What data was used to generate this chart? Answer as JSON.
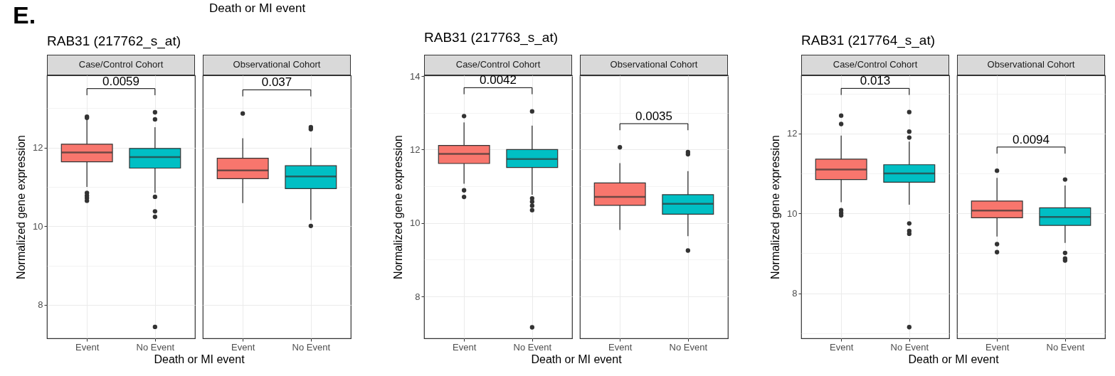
{
  "chart_data": [
    {
      "type": "box",
      "title": "RAB31 (217762_s_at)",
      "subtitle": "Case/Control Cohort",
      "xlabel": "Death or MI event",
      "ylabel": "Normalized gene expression",
      "categories": [
        "Event",
        "No Event"
      ],
      "colors": [
        "#f8766d",
        "#00bfc4"
      ],
      "boxes": [
        {
          "low": 11.0,
          "q1": 11.64,
          "median": 11.88,
          "q3": 12.09,
          "high": 12.72,
          "outliers": [
            12.79,
            12.76,
            10.85,
            10.78,
            10.72,
            10.65
          ]
        },
        {
          "low": 10.85,
          "q1": 11.48,
          "median": 11.76,
          "q3": 11.98,
          "high": 12.52,
          "outliers": [
            12.9,
            12.72,
            10.75,
            10.38,
            10.24,
            7.44
          ]
        }
      ],
      "ylim": [
        7.15,
        13.84
      ],
      "yticks": [
        {
          "value": 8,
          "label": "8"
        },
        {
          "value": 9,
          "label": null
        },
        {
          "value": 10,
          "label": "10"
        },
        {
          "value": 11,
          "label": null
        },
        {
          "value": 12,
          "label": "12"
        },
        {
          "value": 13,
          "label": null
        }
      ],
      "grid": true,
      "annotations": [
        "E.",
        "Death or MI event",
        "0.0059"
      ]
    },
    {
      "type": "box",
      "subtitle": "Observational Cohort",
      "categories": [
        "Event",
        "No Event"
      ],
      "colors": [
        "#f8766d",
        "#00bfc4"
      ],
      "boxes": [
        {
          "low": 10.59,
          "q1": 11.21,
          "median": 11.42,
          "q3": 11.73,
          "high": 12.24,
          "outliers": [
            12.87
          ]
        },
        {
          "low": 10.16,
          "q1": 10.96,
          "median": 11.27,
          "q3": 11.54,
          "high": 12.0,
          "outliers": [
            12.52,
            12.47,
            10.01
          ]
        }
      ],
      "ylim": [
        7.15,
        13.84
      ],
      "yticks": [
        8,
        {
          "value": 9,
          "label": null
        },
        10,
        {
          "value": 11,
          "label": null
        },
        12,
        {
          "value": 13,
          "label": null
        }
      ],
      "grid": true,
      "tick_labels": "x",
      "annotations": [
        "0.037"
      ]
    },
    {
      "type": "box",
      "title": "RAB31 (217763_s_at)",
      "subtitle": "Case/Control Cohort",
      "xlabel": "Death or MI event",
      "ylabel": "Normalized gene expression",
      "categories": [
        "Event",
        "No Event"
      ],
      "colors": [
        "#f8766d",
        "#00bfc4"
      ],
      "boxes": [
        {
          "low": 11.07,
          "q1": 11.62,
          "median": 11.88,
          "q3": 12.11,
          "high": 12.74,
          "outliers": [
            12.91,
            10.89,
            10.71
          ]
        },
        {
          "low": 10.77,
          "q1": 11.51,
          "median": 11.74,
          "q3": 12.0,
          "high": 12.65,
          "outliers": [
            13.04,
            10.67,
            10.58,
            10.47,
            10.35,
            7.16
          ]
        }
      ],
      "ylim": [
        6.86,
        14.02
      ],
      "yticks": [
        {
          "value": 8,
          "label": "8"
        },
        {
          "value": 9,
          "label": null
        },
        {
          "value": 10,
          "label": "10"
        },
        {
          "value": 11,
          "label": null
        },
        {
          "value": 12,
          "label": "12"
        },
        {
          "value": 13,
          "label": null
        },
        {
          "value": 14,
          "label": "14"
        }
      ],
      "grid": true,
      "annotations": [
        "0.0042"
      ]
    },
    {
      "type": "box",
      "subtitle": "Observational Cohort",
      "categories": [
        "Event",
        "No Event"
      ],
      "colors": [
        "#f8766d",
        "#00bfc4"
      ],
      "boxes": [
        {
          "low": 9.81,
          "q1": 10.48,
          "median": 10.71,
          "q3": 11.09,
          "high": 11.63,
          "outliers": [
            12.06
          ]
        },
        {
          "low": 9.64,
          "q1": 10.24,
          "median": 10.52,
          "q3": 10.77,
          "high": 11.41,
          "outliers": [
            11.93,
            11.87,
            9.25
          ]
        }
      ],
      "ylim": [
        6.86,
        14.02
      ],
      "yticks": [
        8,
        {
          "value": 9,
          "label": null
        },
        10,
        {
          "value": 11,
          "label": null
        },
        12,
        {
          "value": 13,
          "label": null
        },
        14
      ],
      "grid": true,
      "tick_labels": "x",
      "annotations": [
        "0.0035"
      ]
    },
    {
      "type": "box",
      "title": "RAB31 (217764_s_at)",
      "subtitle": "Case/Control Cohort",
      "xlabel": "Death or MI event",
      "ylabel": "Normalized gene expression",
      "categories": [
        "Event",
        "No Event"
      ],
      "colors": [
        "#f8766d",
        "#00bfc4"
      ],
      "boxes": [
        {
          "low": 10.28,
          "q1": 10.85,
          "median": 11.1,
          "q3": 11.36,
          "high": 11.95,
          "outliers": [
            12.45,
            12.24,
            10.08,
            10.01,
            9.95
          ]
        },
        {
          "low": 10.22,
          "q1": 10.78,
          "median": 11.0,
          "q3": 11.22,
          "high": 11.8,
          "outliers": [
            12.54,
            12.05,
            11.9,
            9.75,
            9.56,
            9.49,
            7.15
          ]
        }
      ],
      "ylim": [
        6.87,
        13.46
      ],
      "yticks": [
        {
          "value": 7,
          "label": null
        },
        {
          "value": 8,
          "label": "8"
        },
        {
          "value": 9,
          "label": null
        },
        {
          "value": 10,
          "label": "10"
        },
        {
          "value": 11,
          "label": null
        },
        {
          "value": 12,
          "label": "12"
        },
        {
          "value": 13,
          "label": null
        }
      ],
      "grid": true,
      "annotations": [
        "0.013"
      ]
    },
    {
      "type": "box",
      "subtitle": "Observational Cohort",
      "categories": [
        "Event",
        "No Event"
      ],
      "colors": [
        "#f8766d",
        "#00bfc4"
      ],
      "boxes": [
        {
          "low": 9.42,
          "q1": 9.89,
          "median": 10.07,
          "q3": 10.31,
          "high": 10.89,
          "outliers": [
            11.07,
            9.23,
            9.03
          ]
        },
        {
          "low": 9.26,
          "q1": 9.7,
          "median": 9.91,
          "q3": 10.14,
          "high": 10.7,
          "outliers": [
            10.85,
            9.01,
            8.87,
            8.82
          ]
        }
      ],
      "ylim": [
        6.87,
        13.46
      ],
      "yticks": [
        {
          "value": 7,
          "label": null
        },
        8,
        {
          "value": 9,
          "label": null
        },
        10,
        {
          "value": 11,
          "label": null
        },
        12,
        {
          "value": 13,
          "label": null
        }
      ],
      "grid": true,
      "tick_labels": "x",
      "annotations": [
        "0.0094"
      ]
    }
  ]
}
